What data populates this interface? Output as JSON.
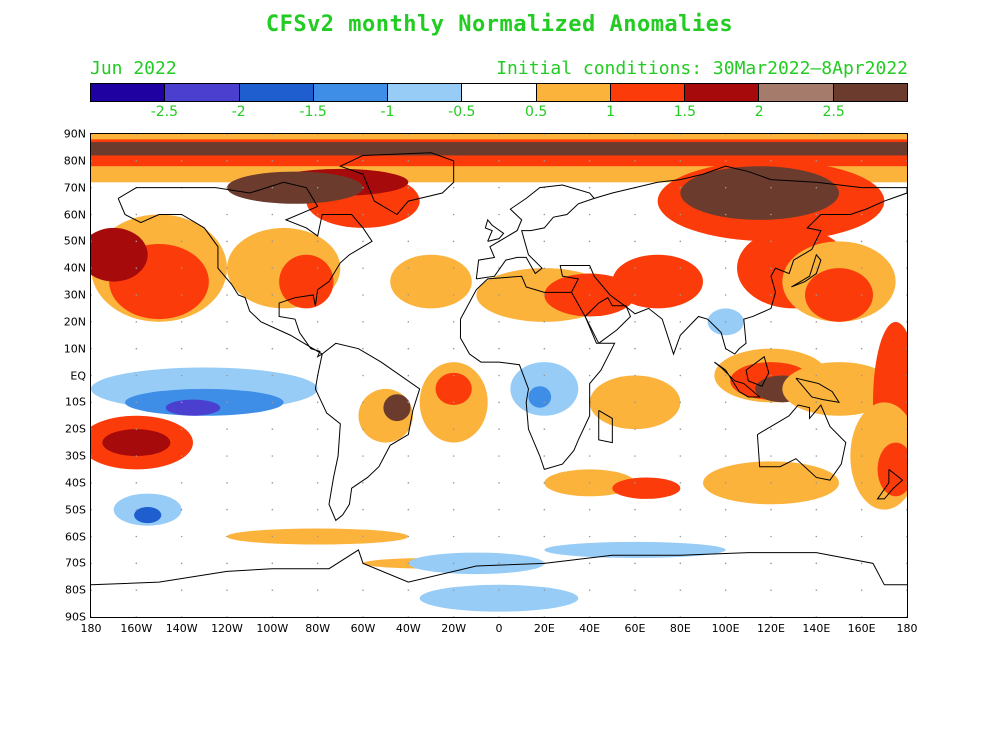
{
  "title": "CFSv2 monthly Normalized Anomalies",
  "month": "Jun 2022",
  "initial_conditions": "Initial conditions: 30Mar2022—8Apr2022",
  "colorbar": {
    "colors": [
      "#1f00a0",
      "#4b3fd0",
      "#1e5ecf",
      "#3e8ee8",
      "#97ccf7",
      "#ffffff",
      "#fbb33c",
      "#fb3c0a",
      "#a70a0a",
      "#a57b6b",
      "#6b3c2d"
    ],
    "labels": [
      "-2.5",
      "-2",
      "-1.5",
      "-1",
      "-0.5",
      "0.5",
      "1",
      "1.5",
      "2",
      "2.5"
    ]
  },
  "lat_labels": [
    "90N",
    "80N",
    "70N",
    "60N",
    "50N",
    "40N",
    "30N",
    "20N",
    "10N",
    "EQ",
    "10S",
    "20S",
    "30S",
    "40S",
    "50S",
    "60S",
    "70S",
    "80S",
    "90S"
  ],
  "lon_labels": [
    "180",
    "160W",
    "140W",
    "120W",
    "100W",
    "80W",
    "60W",
    "40W",
    "20W",
    "0",
    "20E",
    "40E",
    "60E",
    "80E",
    "100E",
    "120E",
    "140E",
    "160E",
    "180"
  ]
}
